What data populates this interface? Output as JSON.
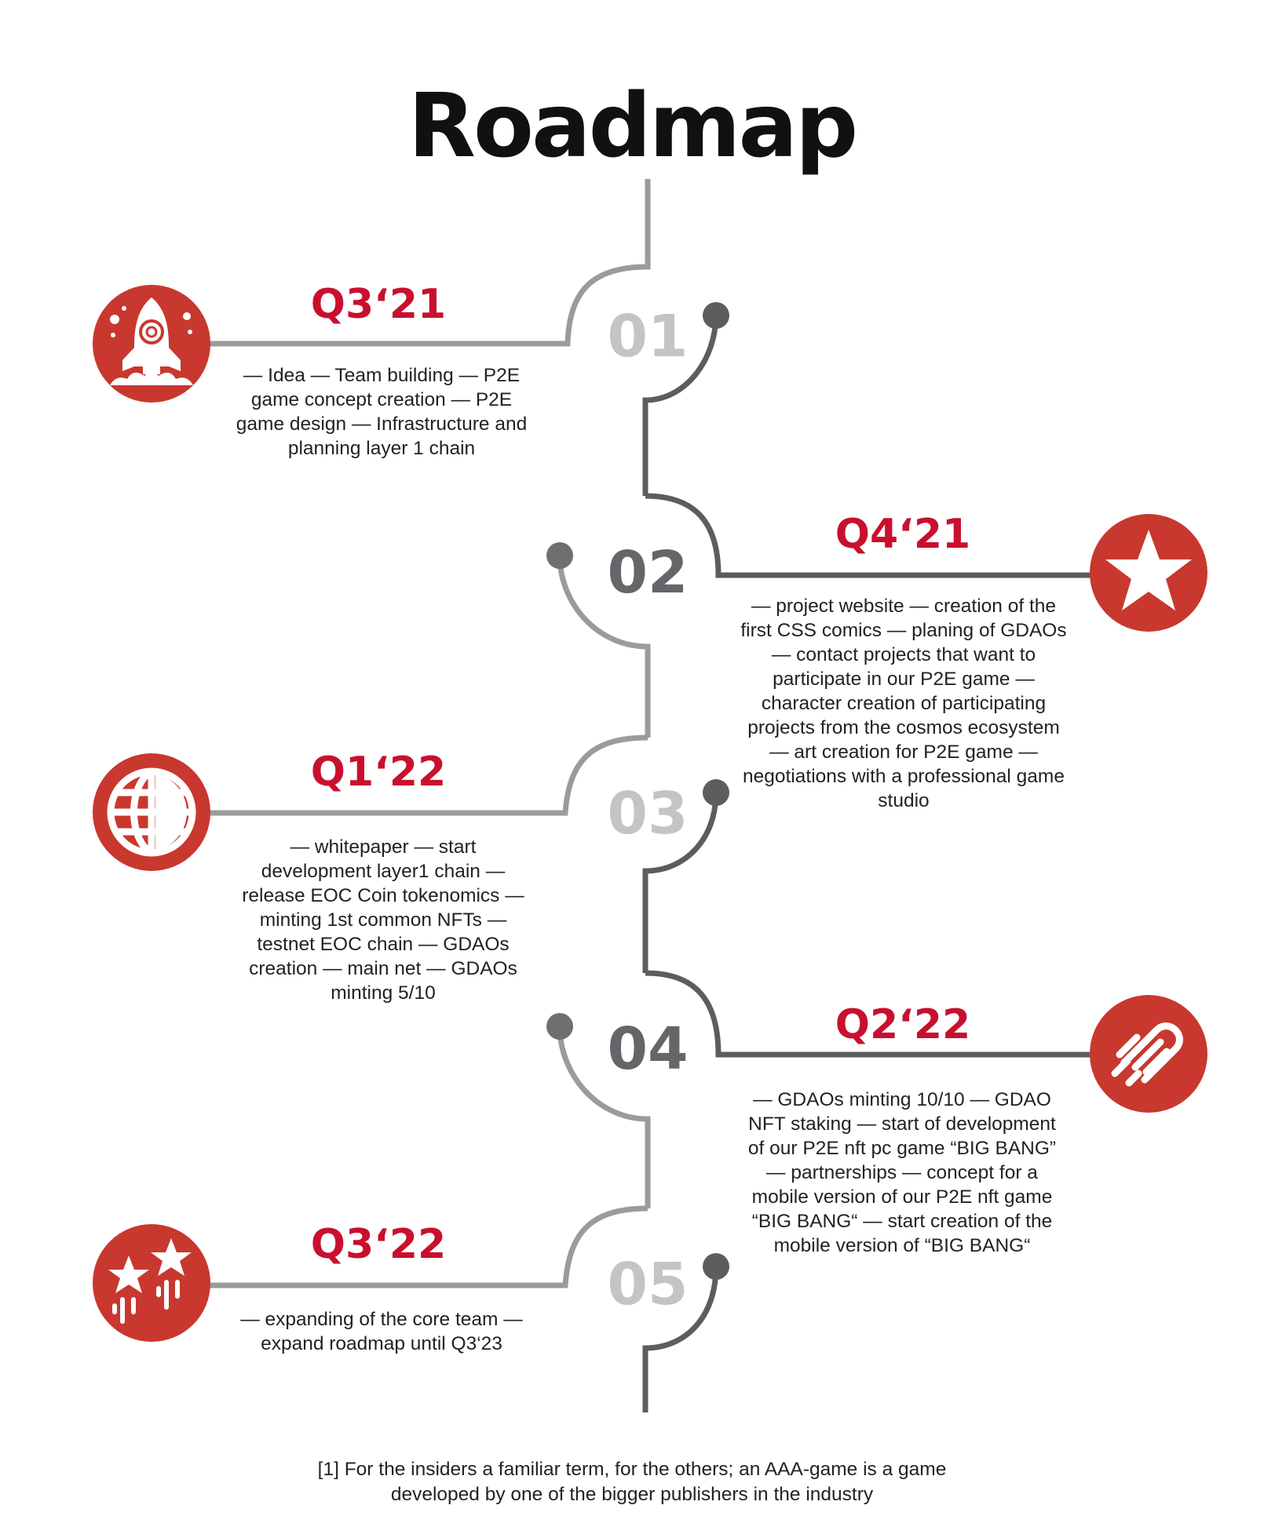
{
  "title": "Roadmap",
  "colors": {
    "accent": "#c8102e",
    "icon_red": "#c8382f",
    "line_light": "#9b9b9b",
    "line_dark": "#5d5d60",
    "number_light": "#c4c4c6",
    "number_dark": "#66666a"
  },
  "milestones": [
    {
      "number": "01",
      "quarter": "Q3‘21",
      "icon": "rocket-icon",
      "description": "— Idea — Team building — P2E game concept creation — P2E game design — Infrastructure and planning layer 1 chain"
    },
    {
      "number": "02",
      "quarter": "Q4‘21",
      "icon": "star-icon",
      "description": "— project website — creation of the first CSS comics — planing of GDAOs — contact projects that want to participate in our P2E game — character creation of participating projects from the cosmos ecosystem — art creation for P2E game — negotiations with a professional game studio"
    },
    {
      "number": "03",
      "quarter": "Q1‘22",
      "icon": "globe-icon",
      "description": "— whitepaper — start development layer1 chain — release EOC Coin tokenomics — minting 1st common NFTs — testnet EOC chain — GDAOs creation — main net — GDAOs minting 5/10"
    },
    {
      "number": "04",
      "quarter": "Q2‘22",
      "icon": "comet-icon",
      "description": "— GDAOs minting 10/10 — GDAO NFT staking — start of development of our P2E nft pc game “BIG BANG” — partnerships — concept for a mobile version of our P2E nft game “BIG BANG“ — start creation of the mobile version of “BIG BANG“"
    },
    {
      "number": "05",
      "quarter": "Q3‘22",
      "icon": "shooting-stars-icon",
      "description": "— expanding of the core team — expand roadmap until Q3‘23"
    }
  ],
  "footnote": "[1] For the insiders a familiar term, for the others; an AAA-game is a game developed by one of the bigger publishers in the industry"
}
